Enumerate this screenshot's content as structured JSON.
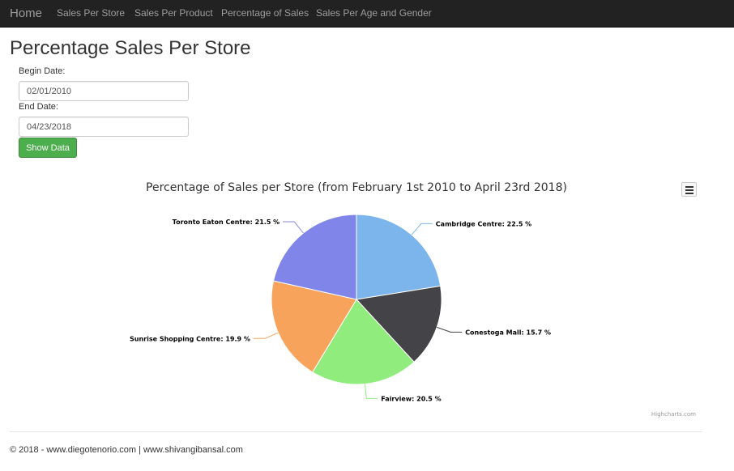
{
  "nav": {
    "brand": "Home",
    "items": [
      "Sales Per Store",
      "Sales Per Product",
      "Percentage of Sales",
      "Sales Per Age and Gender"
    ]
  },
  "page": {
    "title": "Percentage Sales Per Store"
  },
  "form": {
    "begin_label": "Begin Date:",
    "begin_value": "02/01/2010",
    "end_label": "End Date:",
    "end_value": "04/23/2018",
    "button_label": "Show Data",
    "button_color": "#4cae4c"
  },
  "chart_data": {
    "type": "pie",
    "title": "Percentage of Sales per Store (from February 1st 2010 to April 23rd 2018)",
    "categories": [
      "Cambridge Centre",
      "Conestoga Mall",
      "Fairview",
      "Sunrise Shopping Centre",
      "Toronto Eaton Centre"
    ],
    "values": [
      22.5,
      15.7,
      20.5,
      19.9,
      21.5
    ],
    "labels": [
      "Cambridge Centre: 22.5 %",
      "Conestoga Mall: 15.7 %",
      "Fairview: 20.5 %",
      "Sunrise Shopping Centre: 19.9 %",
      "Toronto Eaton Centre: 21.5 %"
    ],
    "colors": [
      "#7cb5ec",
      "#434348",
      "#90ed7d",
      "#f7a35c",
      "#8085e9"
    ],
    "credits": "Highcharts.com",
    "menu_icon": "hamburger-menu-icon"
  },
  "footer": {
    "text": "© 2018 - www.diegotenorio.com | www.shivangibansal.com"
  }
}
